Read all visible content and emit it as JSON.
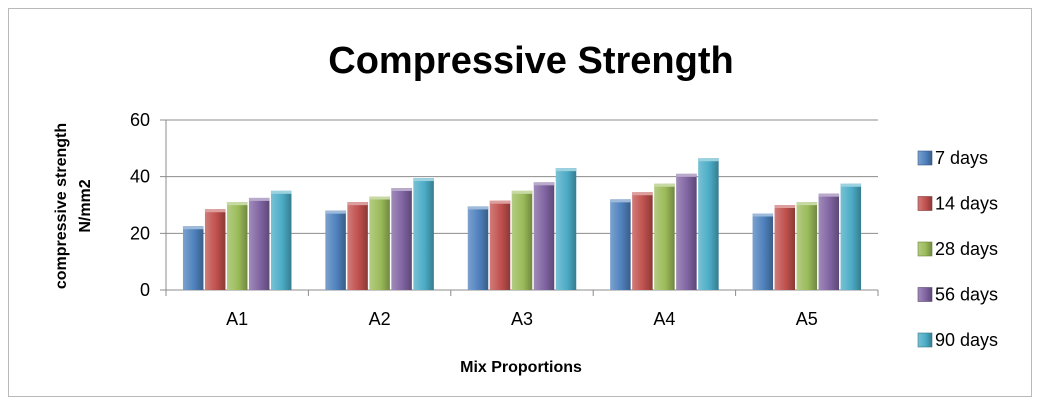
{
  "chart_data": {
    "type": "bar",
    "title": "Compressive Strength",
    "xlabel": "Mix Proportions",
    "ylabel_lines": [
      "compressive strength",
      "N/mm2"
    ],
    "categories": [
      "A1",
      "A2",
      "A3",
      "A4",
      "A5"
    ],
    "ylim": [
      0,
      60
    ],
    "yticks": [
      0,
      20,
      40,
      60
    ],
    "grid": true,
    "legend_position": "right",
    "series": [
      {
        "name": "7 days",
        "color": "#4f81bd",
        "values": [
          22.5,
          28,
          29.5,
          32,
          27
        ]
      },
      {
        "name": "14 days",
        "color": "#c0504d",
        "values": [
          28.5,
          31,
          31.5,
          34.5,
          30
        ]
      },
      {
        "name": "28 days",
        "color": "#9bbb59",
        "values": [
          31,
          33,
          35,
          37.5,
          31
        ]
      },
      {
        "name": "56 days",
        "color": "#8064a2",
        "values": [
          32.5,
          36,
          38,
          41,
          34
        ]
      },
      {
        "name": "90 days",
        "color": "#4bacc6",
        "values": [
          35,
          39.5,
          43,
          46.5,
          37.5
        ]
      }
    ]
  }
}
